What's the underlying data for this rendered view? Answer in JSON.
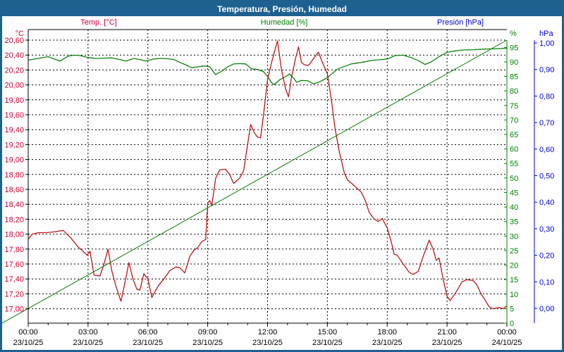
{
  "window": {
    "title": "Temperatura, Presión, Humedad"
  },
  "chart_data": {
    "type": "line",
    "title": "Temperatura, Presión, Humedad",
    "grid": {
      "color": "#000000",
      "dash": "2 3",
      "vertical_interval_hours": 3,
      "minor_tick_hours": 1
    },
    "frame_color": "#1e6090",
    "x_axis": {
      "range_hours": [
        0,
        24
      ],
      "ticks": [
        {
          "time": "00:00",
          "date": "23/10/25",
          "hour": 0
        },
        {
          "time": "03:00",
          "date": "23/10/25",
          "hour": 3
        },
        {
          "time": "06:00",
          "date": "23/10/25",
          "hour": 6
        },
        {
          "time": "09:00",
          "date": "23/10/25",
          "hour": 9
        },
        {
          "time": "12:00",
          "date": "23/10/25",
          "hour": 12
        },
        {
          "time": "15:00",
          "date": "23/10/25",
          "hour": 15
        },
        {
          "time": "18:00",
          "date": "23/10/25",
          "hour": 18
        },
        {
          "time": "21:00",
          "date": "23/10/25",
          "hour": 21
        },
        {
          "time": "00:00",
          "date": "24/10/25",
          "hour": 24
        }
      ],
      "text_color": "#000000"
    },
    "axes": {
      "temperature": {
        "legend": "Temp. [°C]",
        "unit": "°C",
        "side": "left",
        "text_color": "#cc0033",
        "line_color": "#bf1616",
        "min": 17.0,
        "max": 20.6,
        "step": 0.2,
        "ticks": [
          {
            "label": "20,60",
            "value": 20.6
          },
          {
            "label": "20,40",
            "value": 20.4
          },
          {
            "label": "20,20",
            "value": 20.2
          },
          {
            "label": "20,00",
            "value": 20.0
          },
          {
            "label": "19,80",
            "value": 19.8
          },
          {
            "label": "19,60",
            "value": 19.6
          },
          {
            "label": "19,40",
            "value": 19.4
          },
          {
            "label": "19,20",
            "value": 19.2
          },
          {
            "label": "19,00",
            "value": 19.0
          },
          {
            "label": "18,80",
            "value": 18.8
          },
          {
            "label": "18,60",
            "value": 18.6
          },
          {
            "label": "18,40",
            "value": 18.4
          },
          {
            "label": "18,20",
            "value": 18.2
          },
          {
            "label": "18,00",
            "value": 18.0
          },
          {
            "label": "17,80",
            "value": 17.8
          },
          {
            "label": "17,60",
            "value": 17.6
          },
          {
            "label": "17,40",
            "value": 17.4
          },
          {
            "label": "17,20",
            "value": 17.2
          },
          {
            "label": "17,00",
            "value": 17.0
          }
        ]
      },
      "humidity": {
        "legend": "Humedad [%]",
        "unit": "%",
        "side": "right-inner",
        "text_color": "#008000",
        "line_color": "#0b800b",
        "min": 0,
        "max": 97.5,
        "step": 5,
        "ticks": [
          {
            "label": "95",
            "value": 95
          },
          {
            "label": "90",
            "value": 90
          },
          {
            "label": "85",
            "value": 85
          },
          {
            "label": "80",
            "value": 80
          },
          {
            "label": "75",
            "value": 75
          },
          {
            "label": "70",
            "value": 70
          },
          {
            "label": "65",
            "value": 65
          },
          {
            "label": "60",
            "value": 60
          },
          {
            "label": "55",
            "value": 55
          },
          {
            "label": "50",
            "value": 50
          },
          {
            "label": "45",
            "value": 45
          },
          {
            "label": "40",
            "value": 40
          },
          {
            "label": "35",
            "value": 35
          },
          {
            "label": "30",
            "value": 30
          },
          {
            "label": "25",
            "value": 25
          },
          {
            "label": "20",
            "value": 20
          },
          {
            "label": "15",
            "value": 15
          },
          {
            "label": "10",
            "value": 10
          },
          {
            "label": "5",
            "value": 5
          },
          {
            "label": "0",
            "value": 0
          }
        ]
      },
      "pressure": {
        "legend": "Presión [hPa]",
        "unit": "hPa",
        "side": "right-outer",
        "text_color": "#0000cc",
        "line_color": "#0000cc",
        "min": 0.0,
        "max": 1.0,
        "step": 0.1,
        "ticks": [
          {
            "label": "1,00",
            "value": 1.0
          },
          {
            "label": "0,90",
            "value": 0.9
          },
          {
            "label": "0,80",
            "value": 0.8
          },
          {
            "label": "0,70",
            "value": 0.7
          },
          {
            "label": "0,60",
            "value": 0.6
          },
          {
            "label": "0,50",
            "value": 0.5
          },
          {
            "label": "0,40",
            "value": 0.4
          },
          {
            "label": "0,30",
            "value": 0.3
          },
          {
            "label": "0,20",
            "value": 0.2
          },
          {
            "label": "0,10",
            "value": 0.1
          },
          {
            "label": "0,00",
            "value": 0.0
          }
        ]
      }
    },
    "series": [
      {
        "name": "Humedad [%]",
        "axis": "humidity",
        "color": "#0b800b",
        "points": [
          [
            0,
            90.6
          ],
          [
            0.5,
            91.2
          ],
          [
            1.0,
            91.8
          ],
          [
            1.3,
            91.0
          ],
          [
            1.6,
            90.3
          ],
          [
            2.0,
            92.0
          ],
          [
            2.3,
            92.3
          ],
          [
            2.6,
            92.2
          ],
          [
            3.0,
            91.5
          ],
          [
            3.4,
            91.2
          ],
          [
            3.8,
            91.3
          ],
          [
            4.2,
            91.4
          ],
          [
            4.6,
            90.8
          ],
          [
            4.9,
            90.3
          ],
          [
            5.3,
            91.2
          ],
          [
            5.6,
            90.8
          ],
          [
            5.9,
            90.3
          ],
          [
            6.3,
            91.0
          ],
          [
            6.6,
            91.2
          ],
          [
            7.0,
            91.1
          ],
          [
            7.3,
            90.8
          ],
          [
            7.6,
            89.8
          ],
          [
            7.9,
            89.0
          ],
          [
            8.2,
            88.0
          ],
          [
            8.5,
            88.3
          ],
          [
            8.8,
            88.6
          ],
          [
            9.1,
            88.3
          ],
          [
            9.4,
            85.6
          ],
          [
            9.7,
            86.8
          ],
          [
            10.0,
            88.3
          ],
          [
            10.3,
            89.3
          ],
          [
            10.6,
            89.4
          ],
          [
            10.9,
            89.3
          ],
          [
            11.2,
            87.6
          ],
          [
            11.5,
            87.4
          ],
          [
            11.8,
            86.6
          ],
          [
            12.0,
            85.0
          ],
          [
            12.2,
            82.8
          ],
          [
            12.35,
            82.2
          ],
          [
            12.6,
            83.8
          ],
          [
            12.8,
            84.5
          ],
          [
            13.1,
            85.8
          ],
          [
            13.3,
            84.5
          ],
          [
            13.45,
            83.0
          ],
          [
            13.7,
            83.6
          ],
          [
            14.0,
            83.5
          ],
          [
            14.3,
            82.5
          ],
          [
            14.5,
            82.8
          ],
          [
            14.8,
            83.8
          ],
          [
            15.0,
            84.6
          ],
          [
            15.5,
            87.5
          ],
          [
            16.2,
            89.3
          ],
          [
            16.7,
            89.8
          ],
          [
            17.2,
            90.5
          ],
          [
            17.7,
            90.8
          ],
          [
            18.0,
            91.0
          ],
          [
            18.4,
            92.2
          ],
          [
            18.8,
            92.3
          ],
          [
            19.2,
            91.5
          ],
          [
            19.6,
            90.3
          ],
          [
            19.9,
            89.1
          ],
          [
            20.2,
            90.0
          ],
          [
            20.6,
            91.8
          ],
          [
            21.0,
            93.3
          ],
          [
            21.4,
            93.8
          ],
          [
            21.8,
            94.1
          ],
          [
            22.3,
            94.2
          ],
          [
            22.8,
            94.4
          ],
          [
            23.3,
            94.5
          ],
          [
            24.0,
            94.7
          ]
        ]
      },
      {
        "name": "Temp. [°C]",
        "axis": "temperature",
        "color": "#bf1616",
        "points": [
          [
            0,
            17.93
          ],
          [
            0.2,
            18.0
          ],
          [
            0.5,
            18.02
          ],
          [
            0.9,
            18.02
          ],
          [
            1.3,
            18.03
          ],
          [
            1.75,
            18.05
          ],
          [
            2.1,
            17.96
          ],
          [
            2.5,
            17.83
          ],
          [
            2.75,
            17.77
          ],
          [
            2.95,
            17.72
          ],
          [
            3.1,
            17.77
          ],
          [
            3.3,
            17.45
          ],
          [
            3.6,
            17.44
          ],
          [
            3.8,
            17.6
          ],
          [
            4.0,
            17.8
          ],
          [
            4.2,
            17.5
          ],
          [
            4.4,
            17.3
          ],
          [
            4.65,
            17.1
          ],
          [
            4.85,
            17.35
          ],
          [
            5.05,
            17.62
          ],
          [
            5.25,
            17.4
          ],
          [
            5.45,
            17.26
          ],
          [
            5.6,
            17.25
          ],
          [
            5.8,
            17.47
          ],
          [
            6.0,
            17.4
          ],
          [
            6.2,
            17.15
          ],
          [
            6.5,
            17.3
          ],
          [
            6.8,
            17.4
          ],
          [
            7.1,
            17.51
          ],
          [
            7.4,
            17.56
          ],
          [
            7.6,
            17.55
          ],
          [
            7.85,
            17.48
          ],
          [
            8.1,
            17.7
          ],
          [
            8.3,
            17.78
          ],
          [
            8.5,
            17.82
          ],
          [
            8.7,
            17.9
          ],
          [
            8.9,
            17.93
          ],
          [
            9.0,
            18.42
          ],
          [
            9.1,
            18.45
          ],
          [
            9.2,
            18.38
          ],
          [
            9.4,
            18.75
          ],
          [
            9.6,
            18.86
          ],
          [
            9.9,
            18.87
          ],
          [
            10.1,
            18.8
          ],
          [
            10.3,
            18.68
          ],
          [
            10.6,
            18.75
          ],
          [
            10.8,
            18.85
          ],
          [
            11.0,
            19.2
          ],
          [
            11.15,
            19.47
          ],
          [
            11.35,
            19.35
          ],
          [
            11.5,
            19.3
          ],
          [
            11.65,
            19.29
          ],
          [
            11.8,
            19.6
          ],
          [
            12.0,
            20.07
          ],
          [
            12.2,
            20.3
          ],
          [
            12.35,
            20.45
          ],
          [
            12.5,
            20.59
          ],
          [
            12.7,
            20.2
          ],
          [
            12.9,
            19.95
          ],
          [
            13.05,
            19.84
          ],
          [
            13.2,
            20.1
          ],
          [
            13.4,
            20.35
          ],
          [
            13.55,
            20.51
          ],
          [
            13.7,
            20.3
          ],
          [
            13.85,
            20.27
          ],
          [
            14.05,
            20.26
          ],
          [
            14.3,
            20.35
          ],
          [
            14.55,
            20.44
          ],
          [
            14.75,
            20.3
          ],
          [
            15.0,
            20.15
          ],
          [
            15.2,
            19.8
          ],
          [
            15.4,
            19.39
          ],
          [
            15.6,
            19.1
          ],
          [
            15.85,
            18.82
          ],
          [
            16.0,
            18.73
          ],
          [
            16.35,
            18.65
          ],
          [
            16.7,
            18.56
          ],
          [
            16.9,
            18.45
          ],
          [
            17.1,
            18.29
          ],
          [
            17.35,
            18.2
          ],
          [
            17.55,
            18.17
          ],
          [
            17.75,
            18.21
          ],
          [
            18.0,
            18.08
          ],
          [
            18.2,
            17.9
          ],
          [
            18.35,
            17.73
          ],
          [
            18.5,
            17.72
          ],
          [
            18.8,
            17.6
          ],
          [
            19.1,
            17.49
          ],
          [
            19.3,
            17.46
          ],
          [
            19.55,
            17.5
          ],
          [
            19.8,
            17.7
          ],
          [
            20.1,
            17.92
          ],
          [
            20.3,
            17.8
          ],
          [
            20.45,
            17.65
          ],
          [
            20.6,
            17.68
          ],
          [
            20.8,
            17.4
          ],
          [
            21.0,
            17.17
          ],
          [
            21.15,
            17.11
          ],
          [
            21.4,
            17.2
          ],
          [
            21.75,
            17.36
          ],
          [
            22.0,
            17.39
          ],
          [
            22.3,
            17.38
          ],
          [
            22.5,
            17.32
          ],
          [
            22.7,
            17.2
          ],
          [
            22.9,
            17.12
          ],
          [
            23.1,
            17.03
          ],
          [
            23.3,
            17.0
          ],
          [
            23.6,
            17.02
          ],
          [
            23.8,
            17.0
          ],
          [
            24.0,
            17.04
          ]
        ]
      },
      {
        "name": "Presión [hPa]",
        "axis": "pressure",
        "color": "#0000cc",
        "points": []
      }
    ]
  }
}
